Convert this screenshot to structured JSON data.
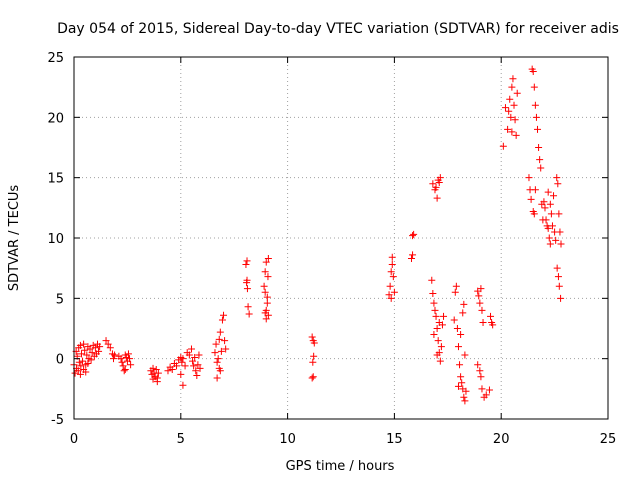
{
  "chart_data": {
    "type": "scatter",
    "title": "Day 054 of 2015, Sidereal Day-to-day VTEC variation (SDTVAR) for receiver adis",
    "xlabel": "GPS time / hours",
    "ylabel": "SDTVAR / TECUs",
    "xlim": [
      0,
      25
    ],
    "ylim": [
      -5,
      25
    ],
    "xticks": [
      0,
      5,
      10,
      15,
      20,
      25
    ],
    "yticks": [
      -5,
      0,
      5,
      10,
      15,
      20,
      25
    ],
    "xtick_labels": [
      "0",
      "5",
      "10",
      "15",
      "20",
      "25"
    ],
    "ytick_labels": [
      "-5",
      "0",
      "5",
      "10",
      "15",
      "20",
      "25"
    ],
    "grid": true,
    "marker": "+",
    "series": [
      {
        "name": "adis",
        "color": "#ff0000",
        "points": [
          [
            0.0,
            -0.5
          ],
          [
            0.05,
            -1.2
          ],
          [
            0.1,
            0.6
          ],
          [
            0.12,
            -0.8
          ],
          [
            0.15,
            0.2
          ],
          [
            0.2,
            -1.0
          ],
          [
            0.22,
            0.9
          ],
          [
            0.25,
            -0.3
          ],
          [
            0.3,
            1.1
          ],
          [
            0.32,
            -0.6
          ],
          [
            0.35,
            0.4
          ],
          [
            0.4,
            -0.2
          ],
          [
            0.45,
            1.2
          ],
          [
            0.5,
            0.7
          ],
          [
            0.55,
            -0.5
          ],
          [
            0.6,
            0.3
          ],
          [
            0.65,
            1.0
          ],
          [
            0.7,
            0.0
          ],
          [
            0.75,
            0.8
          ],
          [
            0.8,
            -0.1
          ],
          [
            0.85,
            0.5
          ],
          [
            0.9,
            1.1
          ],
          [
            0.95,
            0.2
          ],
          [
            1.0,
            0.9
          ],
          [
            1.05,
            0.4
          ],
          [
            1.1,
            1.2
          ],
          [
            1.15,
            0.6
          ],
          [
            1.2,
            1.0
          ],
          [
            0.3,
            -1.3
          ],
          [
            0.45,
            -0.9
          ],
          [
            0.55,
            -1.1
          ],
          [
            0.65,
            -0.4
          ],
          [
            1.5,
            1.5
          ],
          [
            1.6,
            1.2
          ],
          [
            1.7,
            0.9
          ],
          [
            1.8,
            0.4
          ],
          [
            1.85,
            0.0
          ],
          [
            1.9,
            0.3
          ],
          [
            2.1,
            0.2
          ],
          [
            2.2,
            0.0
          ],
          [
            2.25,
            -0.3
          ],
          [
            2.3,
            -0.6
          ],
          [
            2.35,
            -1.0
          ],
          [
            2.4,
            0.3
          ],
          [
            2.45,
            0.1
          ],
          [
            2.5,
            -0.2
          ],
          [
            2.55,
            0.4
          ],
          [
            2.6,
            0.0
          ],
          [
            2.65,
            -0.5
          ],
          [
            2.4,
            -0.9
          ],
          [
            3.6,
            -1.0
          ],
          [
            3.65,
            -1.3
          ],
          [
            3.7,
            -1.7
          ],
          [
            3.75,
            -1.2
          ],
          [
            3.8,
            -1.5
          ],
          [
            3.85,
            -0.9
          ],
          [
            3.9,
            -1.6
          ],
          [
            3.95,
            -1.2
          ],
          [
            3.7,
            -0.8
          ],
          [
            3.9,
            -1.9
          ],
          [
            4.4,
            -1.0
          ],
          [
            4.5,
            -0.7
          ],
          [
            4.6,
            -0.9
          ],
          [
            4.7,
            -0.4
          ],
          [
            4.8,
            -0.6
          ],
          [
            4.9,
            -0.1
          ],
          [
            5.0,
            0.1
          ],
          [
            5.05,
            -0.3
          ],
          [
            5.1,
            0.0
          ],
          [
            5.2,
            -0.6
          ],
          [
            5.0,
            -1.3
          ],
          [
            5.1,
            -2.2
          ],
          [
            5.3,
            0.5
          ],
          [
            5.4,
            0.3
          ],
          [
            5.5,
            0.8
          ],
          [
            5.55,
            -0.2
          ],
          [
            5.6,
            -0.6
          ],
          [
            5.65,
            0.1
          ],
          [
            5.7,
            -1.0
          ],
          [
            5.75,
            -1.4
          ],
          [
            5.8,
            -0.5
          ],
          [
            5.85,
            0.3
          ],
          [
            5.9,
            -0.8
          ],
          [
            6.6,
            0.5
          ],
          [
            6.65,
            1.2
          ],
          [
            6.7,
            -0.3
          ],
          [
            6.75,
            0.0
          ],
          [
            6.8,
            1.6
          ],
          [
            6.85,
            2.2
          ],
          [
            6.9,
            0.6
          ],
          [
            6.95,
            3.2
          ],
          [
            7.0,
            3.6
          ],
          [
            7.05,
            1.5
          ],
          [
            7.1,
            0.8
          ],
          [
            6.7,
            -1.6
          ],
          [
            6.8,
            -0.8
          ],
          [
            6.85,
            -1.0
          ],
          [
            8.05,
            7.8
          ],
          [
            8.1,
            6.5
          ],
          [
            8.12,
            5.8
          ],
          [
            8.15,
            4.3
          ],
          [
            8.2,
            3.7
          ],
          [
            8.1,
            8.1
          ],
          [
            8.08,
            6.3
          ],
          [
            8.9,
            6.0
          ],
          [
            8.95,
            7.2
          ],
          [
            9.0,
            8.0
          ],
          [
            9.05,
            5.1
          ],
          [
            9.1,
            3.6
          ],
          [
            9.0,
            4.0
          ],
          [
            8.95,
            3.8
          ],
          [
            9.05,
            4.6
          ],
          [
            9.1,
            8.3
          ],
          [
            8.95,
            5.5
          ],
          [
            9.08,
            6.8
          ],
          [
            9.0,
            3.3
          ],
          [
            11.15,
            1.8
          ],
          [
            11.2,
            1.5
          ],
          [
            11.22,
            0.2
          ],
          [
            11.18,
            -0.3
          ],
          [
            11.2,
            -1.5
          ],
          [
            11.15,
            -1.6
          ],
          [
            11.25,
            1.3
          ],
          [
            14.75,
            5.3
          ],
          [
            14.8,
            6.0
          ],
          [
            14.85,
            7.2
          ],
          [
            14.9,
            8.4
          ],
          [
            14.95,
            6.8
          ],
          [
            15.0,
            5.5
          ],
          [
            14.85,
            5.0
          ],
          [
            14.9,
            7.8
          ],
          [
            15.85,
            10.2
          ],
          [
            15.9,
            10.3
          ],
          [
            15.8,
            8.3
          ],
          [
            15.85,
            8.6
          ],
          [
            16.8,
            14.5
          ],
          [
            16.9,
            14.0
          ],
          [
            17.0,
            13.3
          ],
          [
            17.05,
            14.8
          ],
          [
            17.1,
            14.6
          ],
          [
            17.15,
            15.0
          ],
          [
            16.95,
            14.2
          ],
          [
            16.75,
            6.5
          ],
          [
            16.8,
            5.4
          ],
          [
            16.85,
            4.6
          ],
          [
            16.9,
            4.0
          ],
          [
            16.95,
            3.5
          ],
          [
            17.0,
            2.5
          ],
          [
            17.05,
            1.5
          ],
          [
            17.1,
            0.5
          ],
          [
            17.15,
            -0.2
          ],
          [
            17.2,
            1.0
          ],
          [
            17.25,
            2.8
          ],
          [
            17.3,
            3.5
          ],
          [
            16.85,
            2.0
          ],
          [
            17.0,
            0.3
          ],
          [
            17.1,
            3.0
          ],
          [
            17.8,
            3.2
          ],
          [
            17.85,
            5.5
          ],
          [
            17.9,
            6.0
          ],
          [
            17.95,
            2.5
          ],
          [
            18.0,
            1.0
          ],
          [
            18.05,
            -0.5
          ],
          [
            18.1,
            -1.5
          ],
          [
            18.15,
            -2.0
          ],
          [
            18.2,
            -2.5
          ],
          [
            18.25,
            -3.2
          ],
          [
            18.3,
            -3.5
          ],
          [
            18.35,
            -2.7
          ],
          [
            18.2,
            3.8
          ],
          [
            18.25,
            4.5
          ],
          [
            18.1,
            2.0
          ],
          [
            18.3,
            0.3
          ],
          [
            18.0,
            -2.3
          ],
          [
            18.9,
            5.6
          ],
          [
            18.95,
            5.2
          ],
          [
            19.0,
            4.6
          ],
          [
            19.05,
            5.8
          ],
          [
            19.1,
            4.0
          ],
          [
            19.15,
            3.0
          ],
          [
            18.9,
            -0.5
          ],
          [
            19.0,
            -1.0
          ],
          [
            19.05,
            -1.5
          ],
          [
            19.1,
            -2.5
          ],
          [
            19.2,
            -3.2
          ],
          [
            19.3,
            -3.0
          ],
          [
            19.5,
            3.5
          ],
          [
            19.55,
            3.0
          ],
          [
            19.6,
            2.8
          ],
          [
            19.45,
            -2.6
          ],
          [
            20.1,
            17.6
          ],
          [
            20.2,
            20.8
          ],
          [
            20.3,
            19.0
          ],
          [
            20.35,
            20.5
          ],
          [
            20.4,
            21.5
          ],
          [
            20.5,
            22.5
          ],
          [
            20.55,
            23.2
          ],
          [
            20.6,
            21.0
          ],
          [
            20.65,
            19.8
          ],
          [
            20.7,
            18.5
          ],
          [
            20.75,
            22.0
          ],
          [
            20.5,
            18.8
          ],
          [
            20.45,
            20.0
          ],
          [
            21.3,
            15.0
          ],
          [
            21.35,
            14.0
          ],
          [
            21.4,
            13.2
          ],
          [
            21.45,
            24.0
          ],
          [
            21.5,
            23.8
          ],
          [
            21.55,
            22.5
          ],
          [
            21.6,
            21.0
          ],
          [
            21.65,
            20.0
          ],
          [
            21.7,
            19.0
          ],
          [
            21.75,
            17.5
          ],
          [
            21.8,
            16.5
          ],
          [
            21.85,
            15.8
          ],
          [
            21.9,
            12.8
          ],
          [
            21.95,
            11.5
          ],
          [
            21.5,
            12.2
          ],
          [
            21.6,
            14.0
          ],
          [
            21.55,
            12.0
          ],
          [
            22.0,
            13.0
          ],
          [
            22.05,
            12.5
          ],
          [
            22.1,
            11.5
          ],
          [
            22.15,
            11.0
          ],
          [
            22.2,
            10.8
          ],
          [
            22.25,
            10.0
          ],
          [
            22.3,
            9.5
          ],
          [
            22.35,
            12.0
          ],
          [
            22.4,
            11.0
          ],
          [
            22.45,
            13.5
          ],
          [
            22.5,
            10.5
          ],
          [
            22.55,
            9.8
          ],
          [
            22.6,
            15.0
          ],
          [
            22.65,
            14.5
          ],
          [
            22.7,
            12.0
          ],
          [
            22.75,
            10.5
          ],
          [
            22.8,
            9.5
          ],
          [
            22.62,
            7.5
          ],
          [
            22.68,
            6.8
          ],
          [
            22.72,
            6.0
          ],
          [
            22.78,
            5.0
          ],
          [
            22.2,
            13.8
          ],
          [
            22.3,
            12.8
          ]
        ]
      }
    ]
  }
}
